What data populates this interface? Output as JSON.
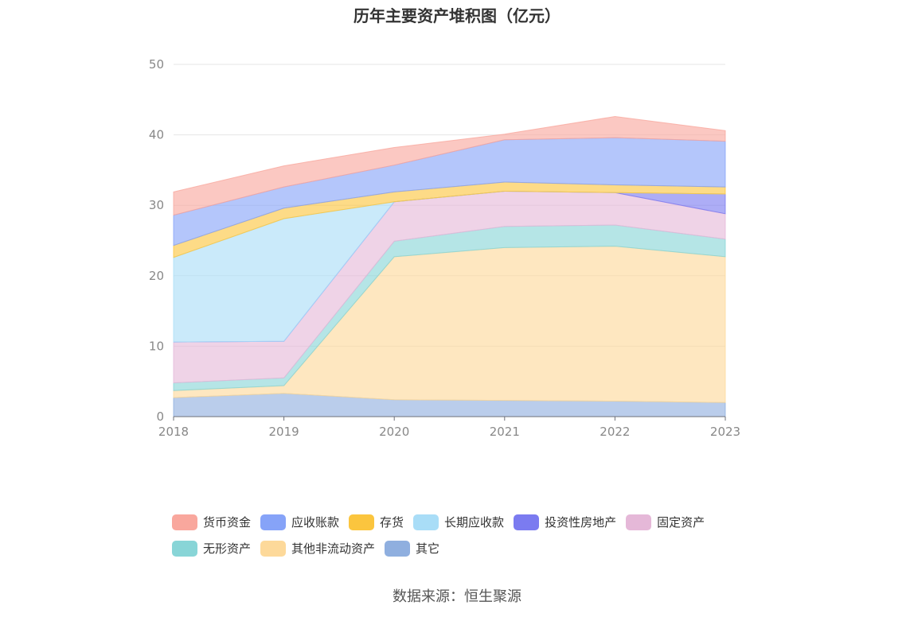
{
  "title": "历年主要资产堆积图（亿元）",
  "source": "数据来源：恒生聚源",
  "chart_data": {
    "type": "area",
    "stacked": true,
    "x": [
      "2018",
      "2019",
      "2020",
      "2021",
      "2022",
      "2023"
    ],
    "ylim": [
      0,
      50
    ],
    "yticks": [
      0,
      10,
      20,
      30,
      40,
      50
    ],
    "grid": true,
    "legend_position": "bottom",
    "series": [
      {
        "name": "其它",
        "color": "#8fafdf",
        "values": [
          2.7,
          3.3,
          2.4,
          2.3,
          2.2,
          2.0
        ]
      },
      {
        "name": "其他非流动资产",
        "color": "#fdd99a",
        "values": [
          1.0,
          1.1,
          20.3,
          21.7,
          22.0,
          20.7
        ]
      },
      {
        "name": "无形资产",
        "color": "#88d5d7",
        "values": [
          1.1,
          1.1,
          2.2,
          3.0,
          3.0,
          2.5
        ]
      },
      {
        "name": "固定资产",
        "color": "#e5b8d8",
        "values": [
          5.8,
          5.2,
          5.6,
          5.0,
          4.6,
          3.6
        ]
      },
      {
        "name": "投资性房地产",
        "color": "#7b7bf0",
        "values": [
          0.0,
          0.0,
          0.0,
          0.0,
          0.0,
          2.8
        ]
      },
      {
        "name": "长期应收款",
        "color": "#a9ddf7",
        "values": [
          12.0,
          17.4,
          0.0,
          0.0,
          0.0,
          0.0
        ]
      },
      {
        "name": "存货",
        "color": "#fbc53e",
        "values": [
          1.7,
          1.5,
          1.4,
          1.3,
          1.1,
          1.0
        ]
      },
      {
        "name": "应收账款",
        "color": "#86a3f8",
        "values": [
          4.3,
          3.0,
          3.8,
          6.0,
          6.7,
          6.5
        ]
      },
      {
        "name": "货币资金",
        "color": "#f9a79d",
        "values": [
          3.3,
          3.0,
          2.5,
          0.8,
          3.0,
          1.5
        ]
      }
    ],
    "legend_order": [
      "货币资金",
      "应收账款",
      "存货",
      "长期应收款",
      "投资性房地产",
      "固定资产",
      "无形资产",
      "其他非流动资产",
      "其它"
    ]
  }
}
